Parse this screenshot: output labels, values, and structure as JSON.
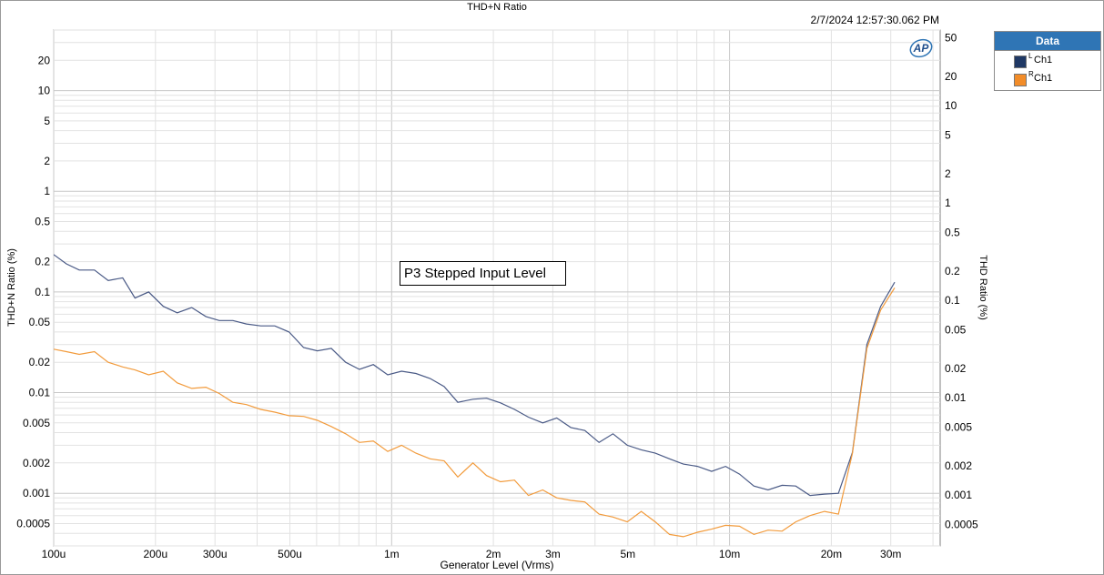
{
  "title": "THD+N Ratio",
  "timestamp": "2/7/2024 12:57:30.062 PM",
  "logo_text": "AP",
  "annotation": "P3 Stepped Input Level",
  "legend": {
    "title": "Data",
    "items": [
      {
        "channel": "L",
        "name": "Ch1",
        "color": "#1f3864"
      },
      {
        "channel": "R",
        "name": "Ch1",
        "color": "#f28c28"
      }
    ]
  },
  "chart_data": {
    "type": "line",
    "xlabel": "Generator Level (Vrms)",
    "ylabel": "THD+N Ratio (%)",
    "ylabel_right": "THD Ratio (%)",
    "x_scale": "log",
    "y_scale": "log",
    "xlim": [
      0.0001,
      0.042
    ],
    "ylim": [
      0.0003,
      40
    ],
    "ylim_right": [
      0.0003,
      60
    ],
    "grid": true,
    "x_ticks": [
      {
        "value": 0.0001,
        "label": "100u"
      },
      {
        "value": 0.0002,
        "label": "200u"
      },
      {
        "value": 0.0003,
        "label": "300u"
      },
      {
        "value": 0.0005,
        "label": "500u"
      },
      {
        "value": 0.001,
        "label": "1m"
      },
      {
        "value": 0.002,
        "label": "2m"
      },
      {
        "value": 0.003,
        "label": "3m"
      },
      {
        "value": 0.005,
        "label": "5m"
      },
      {
        "value": 0.01,
        "label": "10m"
      },
      {
        "value": 0.02,
        "label": "20m"
      },
      {
        "value": 0.03,
        "label": "30m"
      }
    ],
    "y_ticks": [
      {
        "value": 20,
        "label": "20"
      },
      {
        "value": 10,
        "label": "10"
      },
      {
        "value": 5,
        "label": "5"
      },
      {
        "value": 2,
        "label": "2"
      },
      {
        "value": 1,
        "label": "1"
      },
      {
        "value": 0.5,
        "label": "0.5"
      },
      {
        "value": 0.2,
        "label": "0.2"
      },
      {
        "value": 0.1,
        "label": "0.1"
      },
      {
        "value": 0.05,
        "label": "0.05"
      },
      {
        "value": 0.02,
        "label": "0.02"
      },
      {
        "value": 0.01,
        "label": "0.01"
      },
      {
        "value": 0.005,
        "label": "0.005"
      },
      {
        "value": 0.002,
        "label": "0.002"
      },
      {
        "value": 0.001,
        "label": "0.001"
      },
      {
        "value": 0.0005,
        "label": "0.0005"
      }
    ],
    "y_ticks_right": [
      {
        "value": 50,
        "label": "50"
      },
      {
        "value": 20,
        "label": "20"
      },
      {
        "value": 10,
        "label": "10"
      },
      {
        "value": 5,
        "label": "5"
      },
      {
        "value": 2,
        "label": "2"
      },
      {
        "value": 1,
        "label": "1"
      },
      {
        "value": 0.5,
        "label": "0.5"
      },
      {
        "value": 0.2,
        "label": "0.2"
      },
      {
        "value": 0.1,
        "label": "0.1"
      },
      {
        "value": 0.05,
        "label": "0.05"
      },
      {
        "value": 0.02,
        "label": "0.02"
      },
      {
        "value": 0.01,
        "label": "0.01"
      },
      {
        "value": 0.005,
        "label": "0.005"
      },
      {
        "value": 0.002,
        "label": "0.002"
      },
      {
        "value": 0.001,
        "label": "0.001"
      },
      {
        "value": 0.0005,
        "label": "0.0005"
      }
    ],
    "series": [
      {
        "channel": "L",
        "color": "#4a5a86",
        "points": [
          [
            0.0001,
            0.235
          ],
          [
            0.000109,
            0.19
          ],
          [
            0.000119,
            0.165
          ],
          [
            0.000132,
            0.165
          ],
          [
            0.000145,
            0.13
          ],
          [
            0.00016,
            0.138
          ],
          [
            0.000174,
            0.087
          ],
          [
            0.000191,
            0.1
          ],
          [
            0.000211,
            0.072
          ],
          [
            0.000232,
            0.062
          ],
          [
            0.000256,
            0.07
          ],
          [
            0.000282,
            0.057
          ],
          [
            0.000309,
            0.052
          ],
          [
            0.000339,
            0.052
          ],
          [
            0.000372,
            0.048
          ],
          [
            0.00041,
            0.046
          ],
          [
            0.000451,
            0.046
          ],
          [
            0.000497,
            0.04
          ],
          [
            0.000549,
            0.028
          ],
          [
            0.000603,
            0.026
          ],
          [
            0.000663,
            0.0275
          ],
          [
            0.000731,
            0.02
          ],
          [
            0.000803,
            0.017
          ],
          [
            0.000883,
            0.019
          ],
          [
            0.000974,
            0.015
          ],
          [
            0.00107,
            0.0163
          ],
          [
            0.00118,
            0.0155
          ],
          [
            0.0013,
            0.0138
          ],
          [
            0.00143,
            0.0115
          ],
          [
            0.00157,
            0.008
          ],
          [
            0.00174,
            0.0086
          ],
          [
            0.00191,
            0.0088
          ],
          [
            0.0021,
            0.0079
          ],
          [
            0.00231,
            0.0068
          ],
          [
            0.00254,
            0.0057
          ],
          [
            0.0028,
            0.005
          ],
          [
            0.00308,
            0.0056
          ],
          [
            0.00339,
            0.0045
          ],
          [
            0.00373,
            0.0042
          ],
          [
            0.00411,
            0.0032
          ],
          [
            0.00452,
            0.0039
          ],
          [
            0.00498,
            0.003
          ],
          [
            0.00548,
            0.0027
          ],
          [
            0.00603,
            0.0025
          ],
          [
            0.00664,
            0.0022
          ],
          [
            0.0073,
            0.00195
          ],
          [
            0.00804,
            0.00185
          ],
          [
            0.00885,
            0.00165
          ],
          [
            0.00973,
            0.00185
          ],
          [
            0.0107,
            0.00155
          ],
          [
            0.0118,
            0.00118
          ],
          [
            0.013,
            0.00108
          ],
          [
            0.0143,
            0.0012
          ],
          [
            0.0157,
            0.00118
          ],
          [
            0.0173,
            0.00095
          ],
          [
            0.0191,
            0.00098
          ],
          [
            0.021,
            0.001
          ],
          [
            0.0231,
            0.00255
          ],
          [
            0.0255,
            0.03
          ],
          [
            0.028,
            0.072
          ],
          [
            0.0308,
            0.125
          ]
        ]
      },
      {
        "channel": "R",
        "color": "#f29b3c",
        "points": [
          [
            0.0001,
            0.027
          ],
          [
            0.000109,
            0.0255
          ],
          [
            0.000119,
            0.024
          ],
          [
            0.000132,
            0.0255
          ],
          [
            0.000145,
            0.02
          ],
          [
            0.00016,
            0.018
          ],
          [
            0.000174,
            0.0168
          ],
          [
            0.000191,
            0.015
          ],
          [
            0.000211,
            0.0163
          ],
          [
            0.000232,
            0.0125
          ],
          [
            0.000256,
            0.011
          ],
          [
            0.000282,
            0.0113
          ],
          [
            0.000309,
            0.0098
          ],
          [
            0.000339,
            0.008
          ],
          [
            0.000372,
            0.0076
          ],
          [
            0.00041,
            0.0068
          ],
          [
            0.000451,
            0.0064
          ],
          [
            0.000497,
            0.0059
          ],
          [
            0.000549,
            0.0058
          ],
          [
            0.000603,
            0.0053
          ],
          [
            0.000663,
            0.0046
          ],
          [
            0.000731,
            0.0039
          ],
          [
            0.000803,
            0.0032
          ],
          [
            0.000883,
            0.0033
          ],
          [
            0.000974,
            0.0026
          ],
          [
            0.00107,
            0.003
          ],
          [
            0.00118,
            0.0025
          ],
          [
            0.0013,
            0.0022
          ],
          [
            0.00143,
            0.0021
          ],
          [
            0.00157,
            0.00145
          ],
          [
            0.00174,
            0.002
          ],
          [
            0.00191,
            0.0015
          ],
          [
            0.0021,
            0.0013
          ],
          [
            0.00231,
            0.00135
          ],
          [
            0.00254,
            0.00095
          ],
          [
            0.0028,
            0.00108
          ],
          [
            0.00308,
            0.0009
          ],
          [
            0.00339,
            0.00085
          ],
          [
            0.00373,
            0.00082
          ],
          [
            0.00411,
            0.00062
          ],
          [
            0.00452,
            0.00058
          ],
          [
            0.00498,
            0.00052
          ],
          [
            0.00548,
            0.00066
          ],
          [
            0.00603,
            0.00052
          ],
          [
            0.00664,
            0.00039
          ],
          [
            0.0073,
            0.00037
          ],
          [
            0.00804,
            0.00041
          ],
          [
            0.00885,
            0.00044
          ],
          [
            0.00973,
            0.00048
          ],
          [
            0.0107,
            0.00047
          ],
          [
            0.0118,
            0.00039
          ],
          [
            0.013,
            0.00043
          ],
          [
            0.0143,
            0.00042
          ],
          [
            0.0157,
            0.00052
          ],
          [
            0.0173,
            0.0006
          ],
          [
            0.0191,
            0.00066
          ],
          [
            0.021,
            0.00062
          ],
          [
            0.0231,
            0.0025
          ],
          [
            0.0255,
            0.0275
          ],
          [
            0.028,
            0.066
          ],
          [
            0.0308,
            0.11
          ]
        ]
      }
    ]
  }
}
